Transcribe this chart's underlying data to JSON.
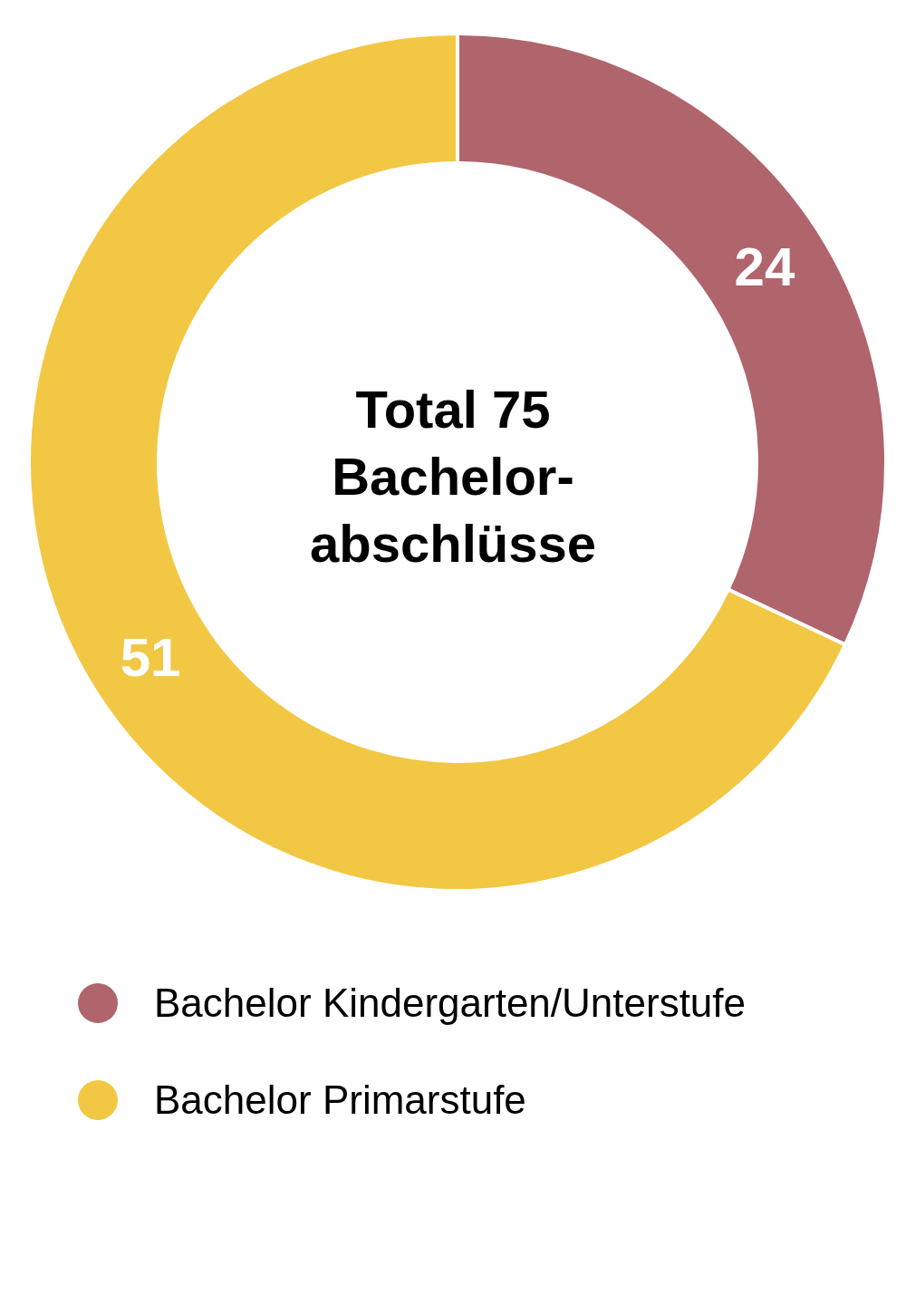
{
  "chart_data": {
    "type": "donut",
    "title": "Total 75 Bachelor-abschlüsse",
    "categories": [
      "Bachelor Kindergarten/Unterstufe",
      "Bachelor Primarstufe"
    ],
    "values": [
      24,
      51
    ],
    "colors": [
      "#b0646c",
      "#f2c744"
    ],
    "data_labels": true,
    "legend": "bottom"
  }
}
